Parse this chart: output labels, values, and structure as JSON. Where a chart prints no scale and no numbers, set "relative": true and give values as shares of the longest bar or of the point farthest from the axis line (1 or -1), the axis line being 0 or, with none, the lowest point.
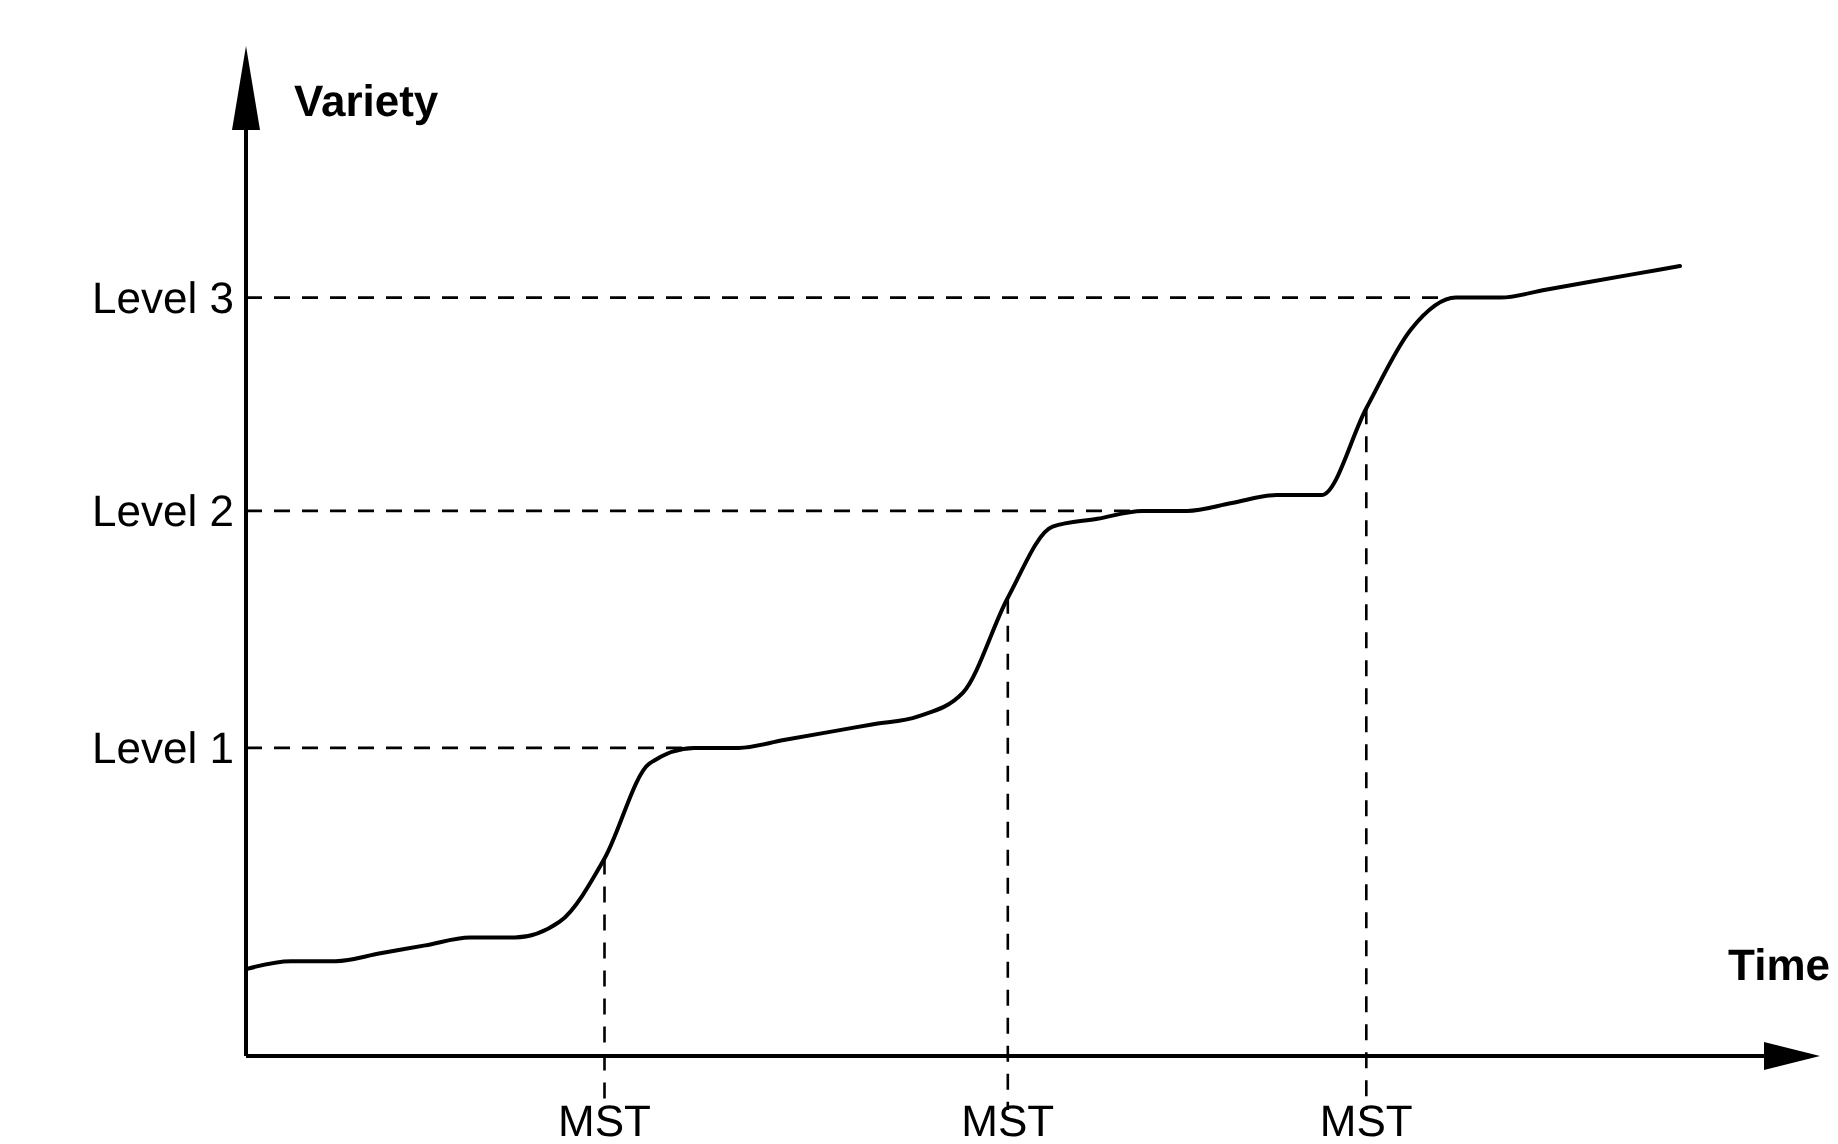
{
  "chart_data": {
    "type": "line",
    "xlabel": "Time",
    "ylabel": "Variety",
    "relative": true,
    "grid": false,
    "line_style": "solid",
    "categories": [
      null,
      null,
      null,
      null,
      null,
      null,
      null,
      null,
      "MST",
      null,
      null,
      null,
      null,
      null,
      null,
      null,
      null,
      "MST",
      null,
      null,
      null,
      null,
      null,
      null,
      null,
      "MST",
      null,
      null,
      null,
      null,
      null,
      null,
      null
    ],
    "ref_lines": [
      {
        "axis": "y",
        "value": 0.39,
        "label": "Level 1",
        "line_style": "dashed"
      },
      {
        "axis": "y",
        "value": 0.69,
        "label": "Level 2",
        "line_style": "dashed"
      },
      {
        "axis": "y",
        "value": 0.96,
        "label": "Level 3",
        "line_style": "dashed"
      }
    ],
    "series": [
      {
        "color": "#000000",
        "values": [
          0.11,
          0.12,
          0.12,
          0.13,
          0.14,
          0.15,
          0.15,
          0.17,
          0.25,
          0.37,
          0.39,
          0.39,
          0.4,
          0.41,
          0.42,
          0.43,
          0.46,
          0.58,
          0.67,
          0.68,
          0.69,
          0.69,
          0.7,
          0.71,
          0.71,
          0.82,
          0.92,
          0.96,
          0.96,
          0.97,
          0.98,
          0.99,
          1
        ]
      }
    ]
  }
}
